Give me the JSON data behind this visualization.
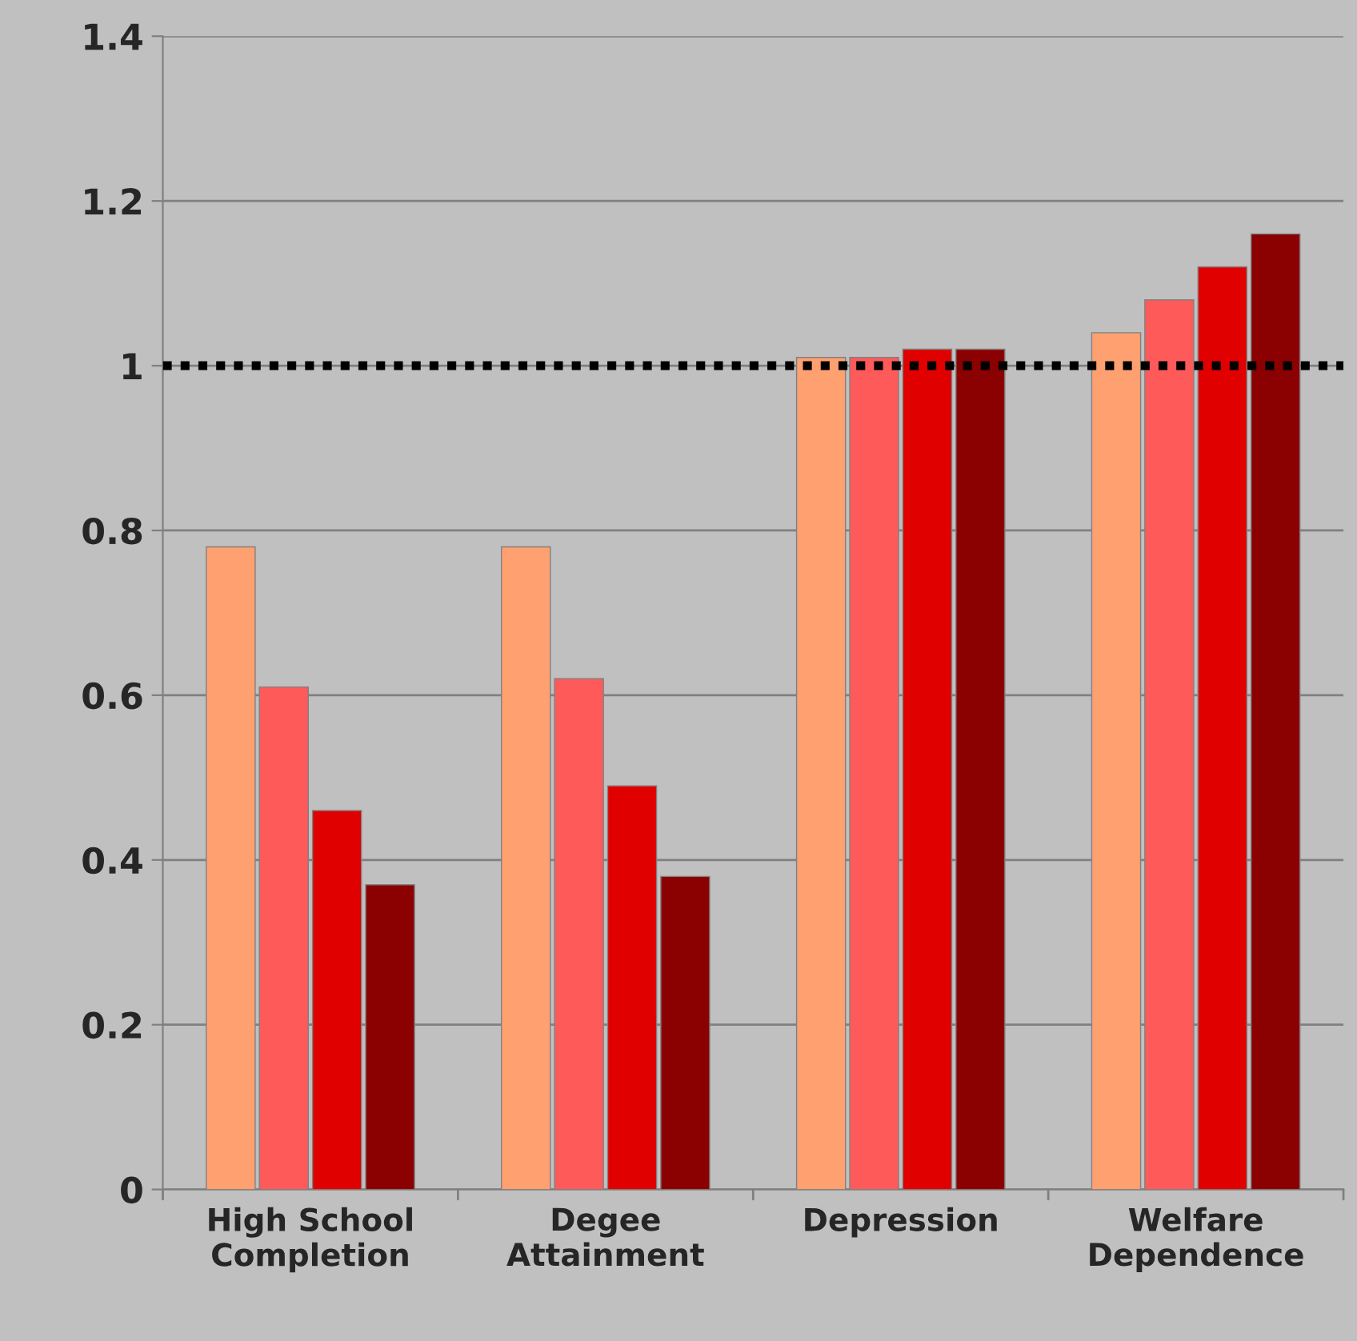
{
  "chart_data": {
    "type": "bar",
    "categories": [
      "High School\nCompletion",
      "Degee\nAttainment",
      "Depression",
      "Welfare\nDependence"
    ],
    "series": [
      {
        "color": "#ffa070",
        "values": [
          0.78,
          0.78,
          1.01,
          1.04
        ]
      },
      {
        "color": "#ff5a5a",
        "values": [
          0.61,
          0.62,
          1.01,
          1.08
        ]
      },
      {
        "color": "#e00000",
        "values": [
          0.46,
          0.49,
          1.02,
          1.12
        ]
      },
      {
        "color": "#8b0000",
        "values": [
          0.37,
          0.38,
          1.02,
          1.16
        ]
      }
    ],
    "ylim": [
      0,
      1.4
    ],
    "yticks": [
      0,
      0.2,
      0.4,
      0.6,
      0.8,
      1,
      1.2,
      1.4
    ],
    "grid": "y",
    "legend": false,
    "ref_lines": [
      {
        "axis": "y",
        "value": 1,
        "color": "#000000",
        "line_style": "dotted"
      }
    ]
  }
}
